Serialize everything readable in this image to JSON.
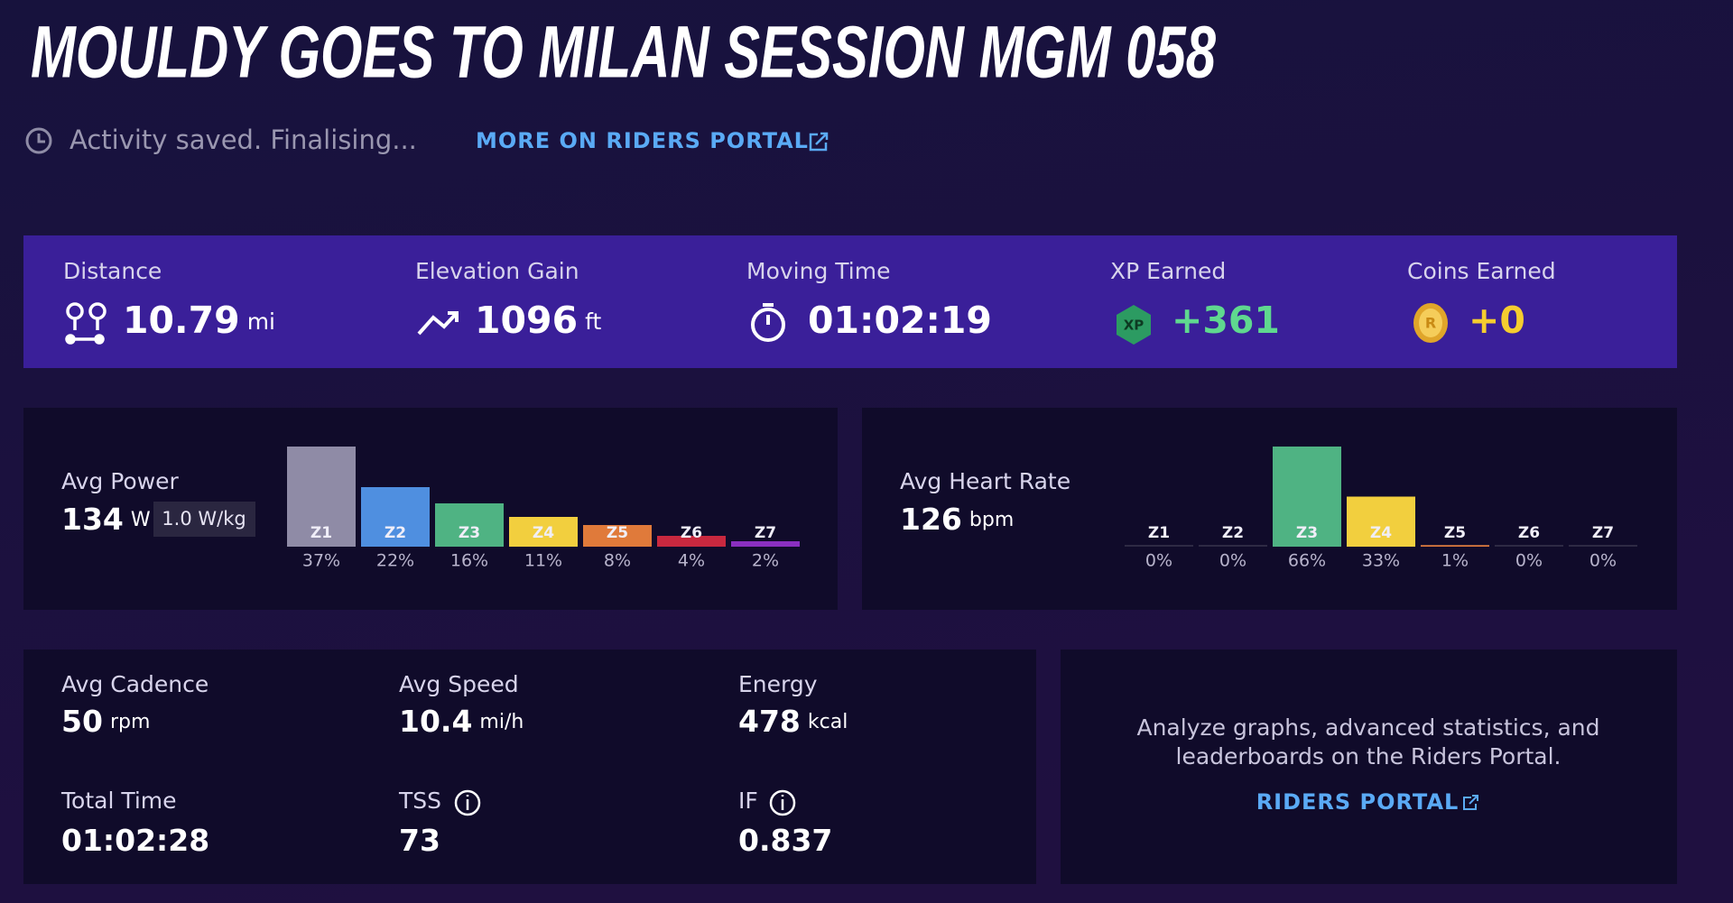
{
  "header": {
    "title": "MOULDY GOES TO MILAN SESSION MGM 058",
    "status": "Activity saved. Finalising...",
    "portal_link": "MORE ON RIDERS PORTAL"
  },
  "summary": [
    {
      "label": "Distance",
      "value": 10.79,
      "unit": "mi"
    },
    {
      "label": "Elevation Gain",
      "value": 1096,
      "unit": "ft"
    },
    {
      "label": "Moving Time",
      "value": "01:02:19"
    },
    {
      "label": "XP Earned",
      "value": "+361"
    },
    {
      "label": "Coins Earned",
      "value": "+0"
    }
  ],
  "power": {
    "label": "Avg Power",
    "value": 134,
    "unit": "W",
    "wkg": "1.0 W/kg",
    "zones": [
      {
        "label": "Z1",
        "value": 37,
        "value_label": "37%",
        "color": "#8f8ba6"
      },
      {
        "label": "Z2",
        "value": 22,
        "value_label": "22%",
        "color": "#4f8fe0"
      },
      {
        "label": "Z3",
        "value": 16,
        "value_label": "16%",
        "color": "#4fb383"
      },
      {
        "label": "Z4",
        "value": 11,
        "value_label": "11%",
        "color": "#f2cf3e"
      },
      {
        "label": "Z5",
        "value": 8,
        "value_label": "8%",
        "color": "#e07a3a"
      },
      {
        "label": "Z6",
        "value": 4,
        "value_label": "4%",
        "color": "#c9283f"
      },
      {
        "label": "Z7",
        "value": 2,
        "value_label": "2%",
        "color": "#8a2fc0"
      }
    ]
  },
  "heart_rate": {
    "label": "Avg Heart Rate",
    "value": 126,
    "unit": "bpm",
    "zones": [
      {
        "label": "Z1",
        "value": 0,
        "value_label": "0%",
        "color": "#8f8ba6"
      },
      {
        "label": "Z2",
        "value": 0,
        "value_label": "0%",
        "color": "#4f8fe0"
      },
      {
        "label": "Z3",
        "value": 66,
        "value_label": "66%",
        "color": "#4fb383"
      },
      {
        "label": "Z4",
        "value": 33,
        "value_label": "33%",
        "color": "#f2cf3e"
      },
      {
        "label": "Z5",
        "value": 1,
        "value_label": "1%",
        "color": "#e07a3a"
      },
      {
        "label": "Z6",
        "value": 0,
        "value_label": "0%",
        "color": "#c9283f"
      },
      {
        "label": "Z7",
        "value": 0,
        "value_label": "0%",
        "color": "#8a2fc0"
      }
    ]
  },
  "details": [
    {
      "label": "Avg Cadence",
      "value": 50,
      "unit": "rpm"
    },
    {
      "label": "Avg Speed",
      "value": 10.4,
      "unit": "mi/h"
    },
    {
      "label": "Energy",
      "value": 478,
      "unit": "kcal"
    },
    {
      "label": "Total Time",
      "value": "01:02:28"
    },
    {
      "label": "TSS",
      "value": 73
    },
    {
      "label": "IF",
      "value": 0.837
    }
  ],
  "portal_card": {
    "text_lines": [
      "Analyze graphs, advanced statistics, and",
      "leaderboards on the Riders Portal."
    ],
    "link": "RIDERS PORTAL"
  }
}
